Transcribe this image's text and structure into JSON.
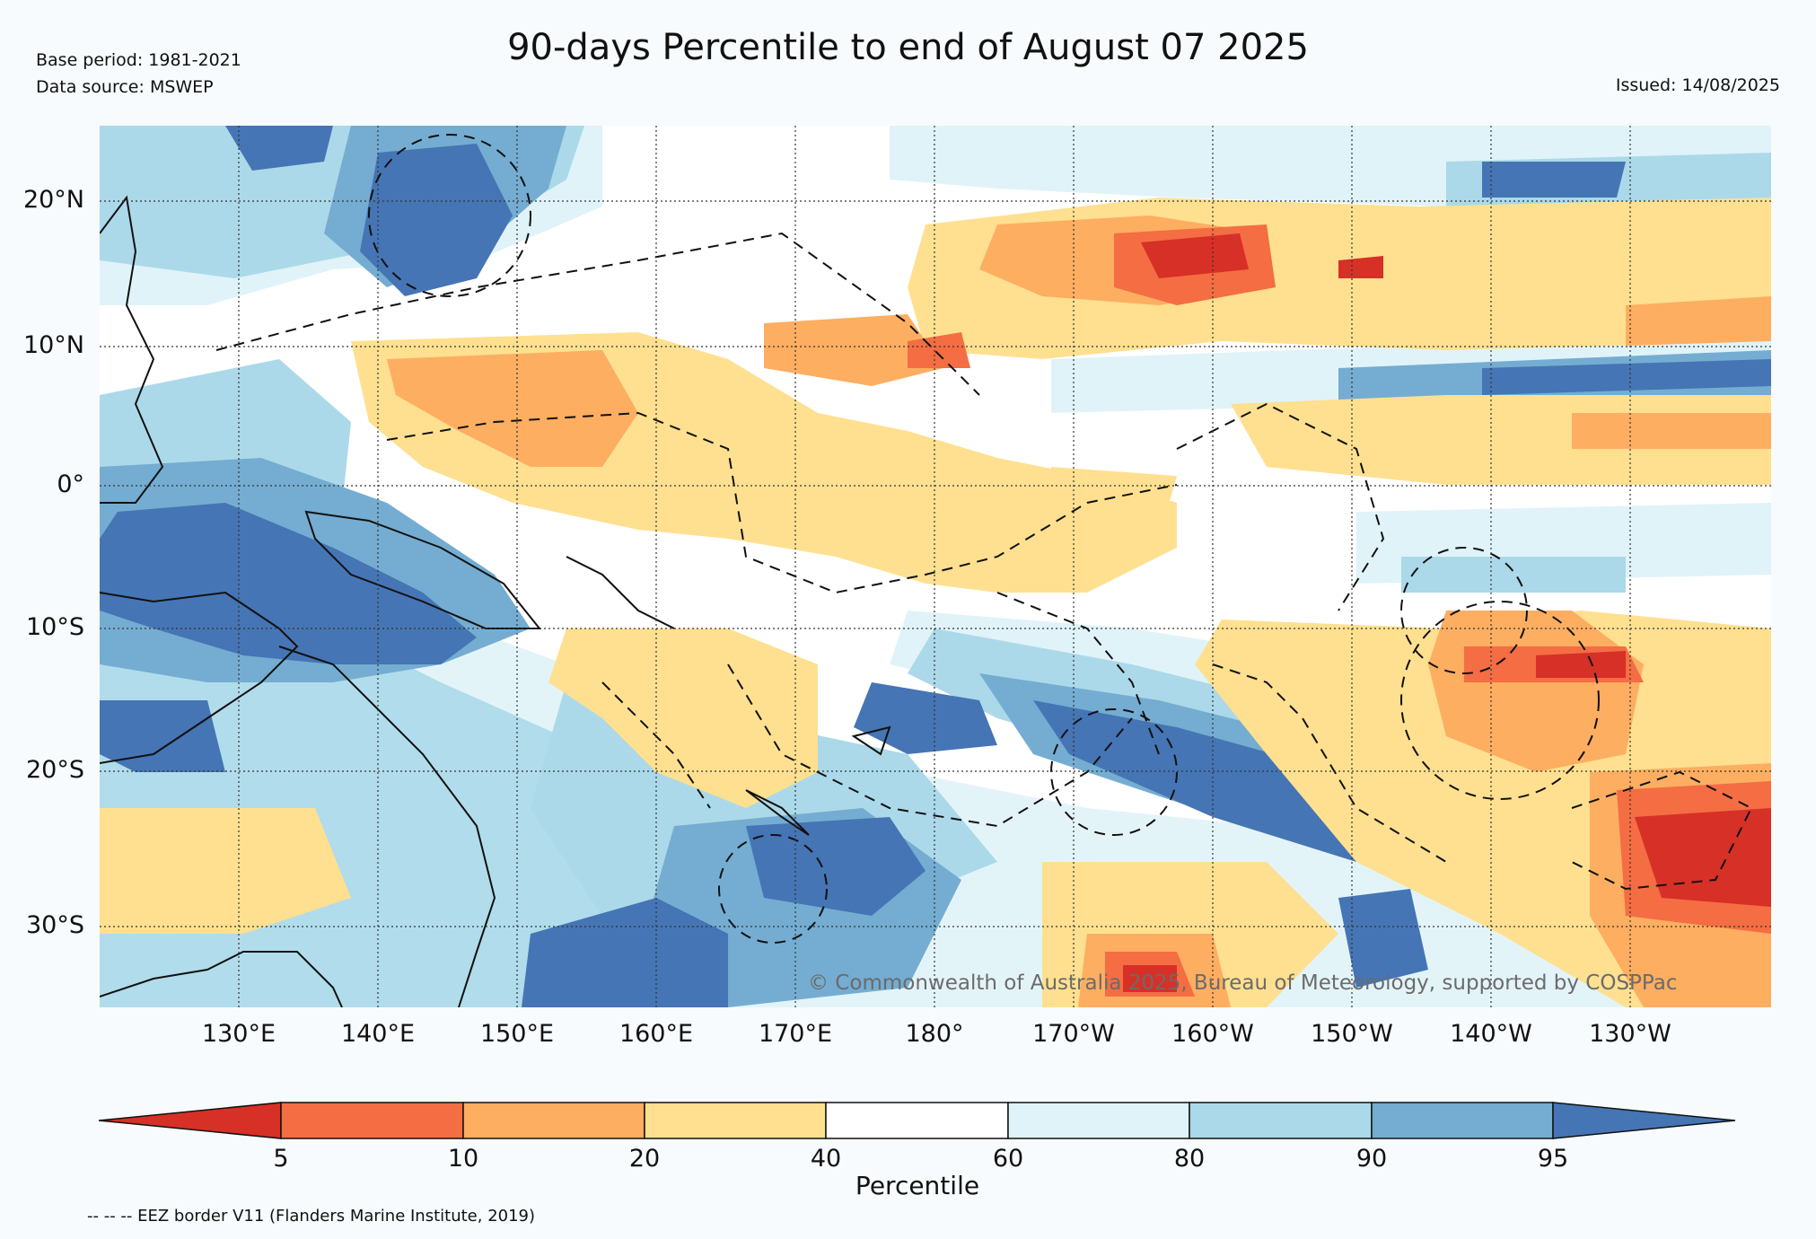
{
  "title": "90-days Percentile to end of August 07 2025",
  "base_period": "Base period: 1981-2021",
  "data_source": "Data source: MSWEP",
  "issued": "Issued: 14/08/2025",
  "copyright": "© Commonwealth of Australia 2025, Bureau of Meteorology, supported by COSPPac",
  "footnote": "-- -- -- EEZ border V11 (Flanders Marine Institute, 2019)",
  "map": {
    "lat_labels": [
      "20°N",
      "10°N",
      "0°",
      "10°S",
      "20°S",
      "30°S"
    ],
    "lon_labels": [
      "130°E",
      "140°E",
      "150°E",
      "160°E",
      "170°E",
      "180°",
      "170°W",
      "160°W",
      "150°W",
      "140°W",
      "130°W"
    ]
  },
  "colorbar": {
    "title": "Percentile",
    "ticks": [
      "5",
      "10",
      "20",
      "40",
      "60",
      "80",
      "90",
      "95"
    ],
    "colors": {
      "lt5": "#d73027",
      "b5_10": "#f46d43",
      "b10_20": "#fdae61",
      "b20_40": "#fee090",
      "b40_60": "#ffffff",
      "b60_80": "#e0f3f8",
      "b80_90": "#abd9e9",
      "b90_95": "#74add1",
      "gt95": "#4575b4"
    }
  }
}
